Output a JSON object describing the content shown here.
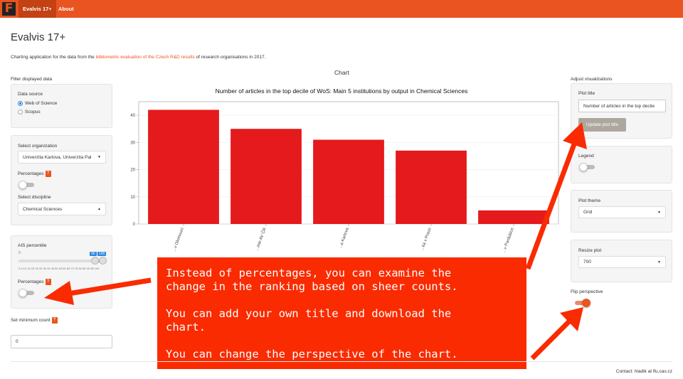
{
  "navbar": {
    "logo": "F",
    "tabs": [
      "Evalvis 17+",
      "About"
    ],
    "accent_color": "#e95420"
  },
  "header": {
    "title": "Evalvis 17+",
    "desc_before": "Charting application for the data from the ",
    "desc_link": "bibliometric evaluation of the Czech R&D results",
    "desc_after": " of research organisations in 2017."
  },
  "left": {
    "section_label": "Filter displayed data",
    "data_source_label": "Data source",
    "data_source_options": [
      "Web of Science",
      "Scopus"
    ],
    "data_source_selected": "Web of Science",
    "organization_label": "Select organization",
    "organization_value": "Univerzita Karlova, Univerzita Pal",
    "percentages_label": "Percentages",
    "discipline_label": "Select discipline",
    "discipline_value": "Chemical Sciences",
    "ais_label": "AIS percentile",
    "ais_min_label": "0",
    "ais_low_value": "90",
    "ais_high_value": "100",
    "ais_ticks": "0  5  10  15  20  25  30  35  40  45  50  55  60  65  70  75  80  85  90  95  100",
    "percentages2_label": "Percentages",
    "min_count_label": "Set minimum count",
    "min_count_value": "0",
    "help_icon": "?"
  },
  "main": {
    "tab_label": "Chart"
  },
  "chart_data": {
    "type": "bar",
    "title": "Number of articles in the top decile of WoS: Main 5 institutions by output in Chemical Sciences",
    "categories": [
      "...v Olomouci",
      "...mie AV ČR",
      "...a Karlova",
      "...ká v Praze",
      "...v Pardubice"
    ],
    "values": [
      42,
      35,
      31,
      27,
      5
    ],
    "ylim": [
      0,
      45
    ],
    "yticks": [
      0,
      10,
      20,
      30,
      40
    ],
    "bar_color": "#e41a1c",
    "grid": true
  },
  "right": {
    "section_label": "Adjust visualizations",
    "plot_title_label": "Plot title",
    "plot_title_value": "Number of articles in the top decile",
    "update_button": "Update plot title",
    "legend_label": "Legend",
    "theme_label": "Plot theme",
    "theme_value": "Grid",
    "resize_label": "Resize plot",
    "resize_value": "700",
    "flip_label": "Flip perspective"
  },
  "annotation": {
    "paragraphs": [
      "Instead of percentages, you can examine the\nchange in the ranking based on sheer counts.",
      "You can add your own title and download the\nchart.",
      "You can change the perspective of the chart."
    ],
    "color": "#fa2b00"
  },
  "footer": {
    "contact": "Contact: hladik at flu.cas.cz"
  }
}
